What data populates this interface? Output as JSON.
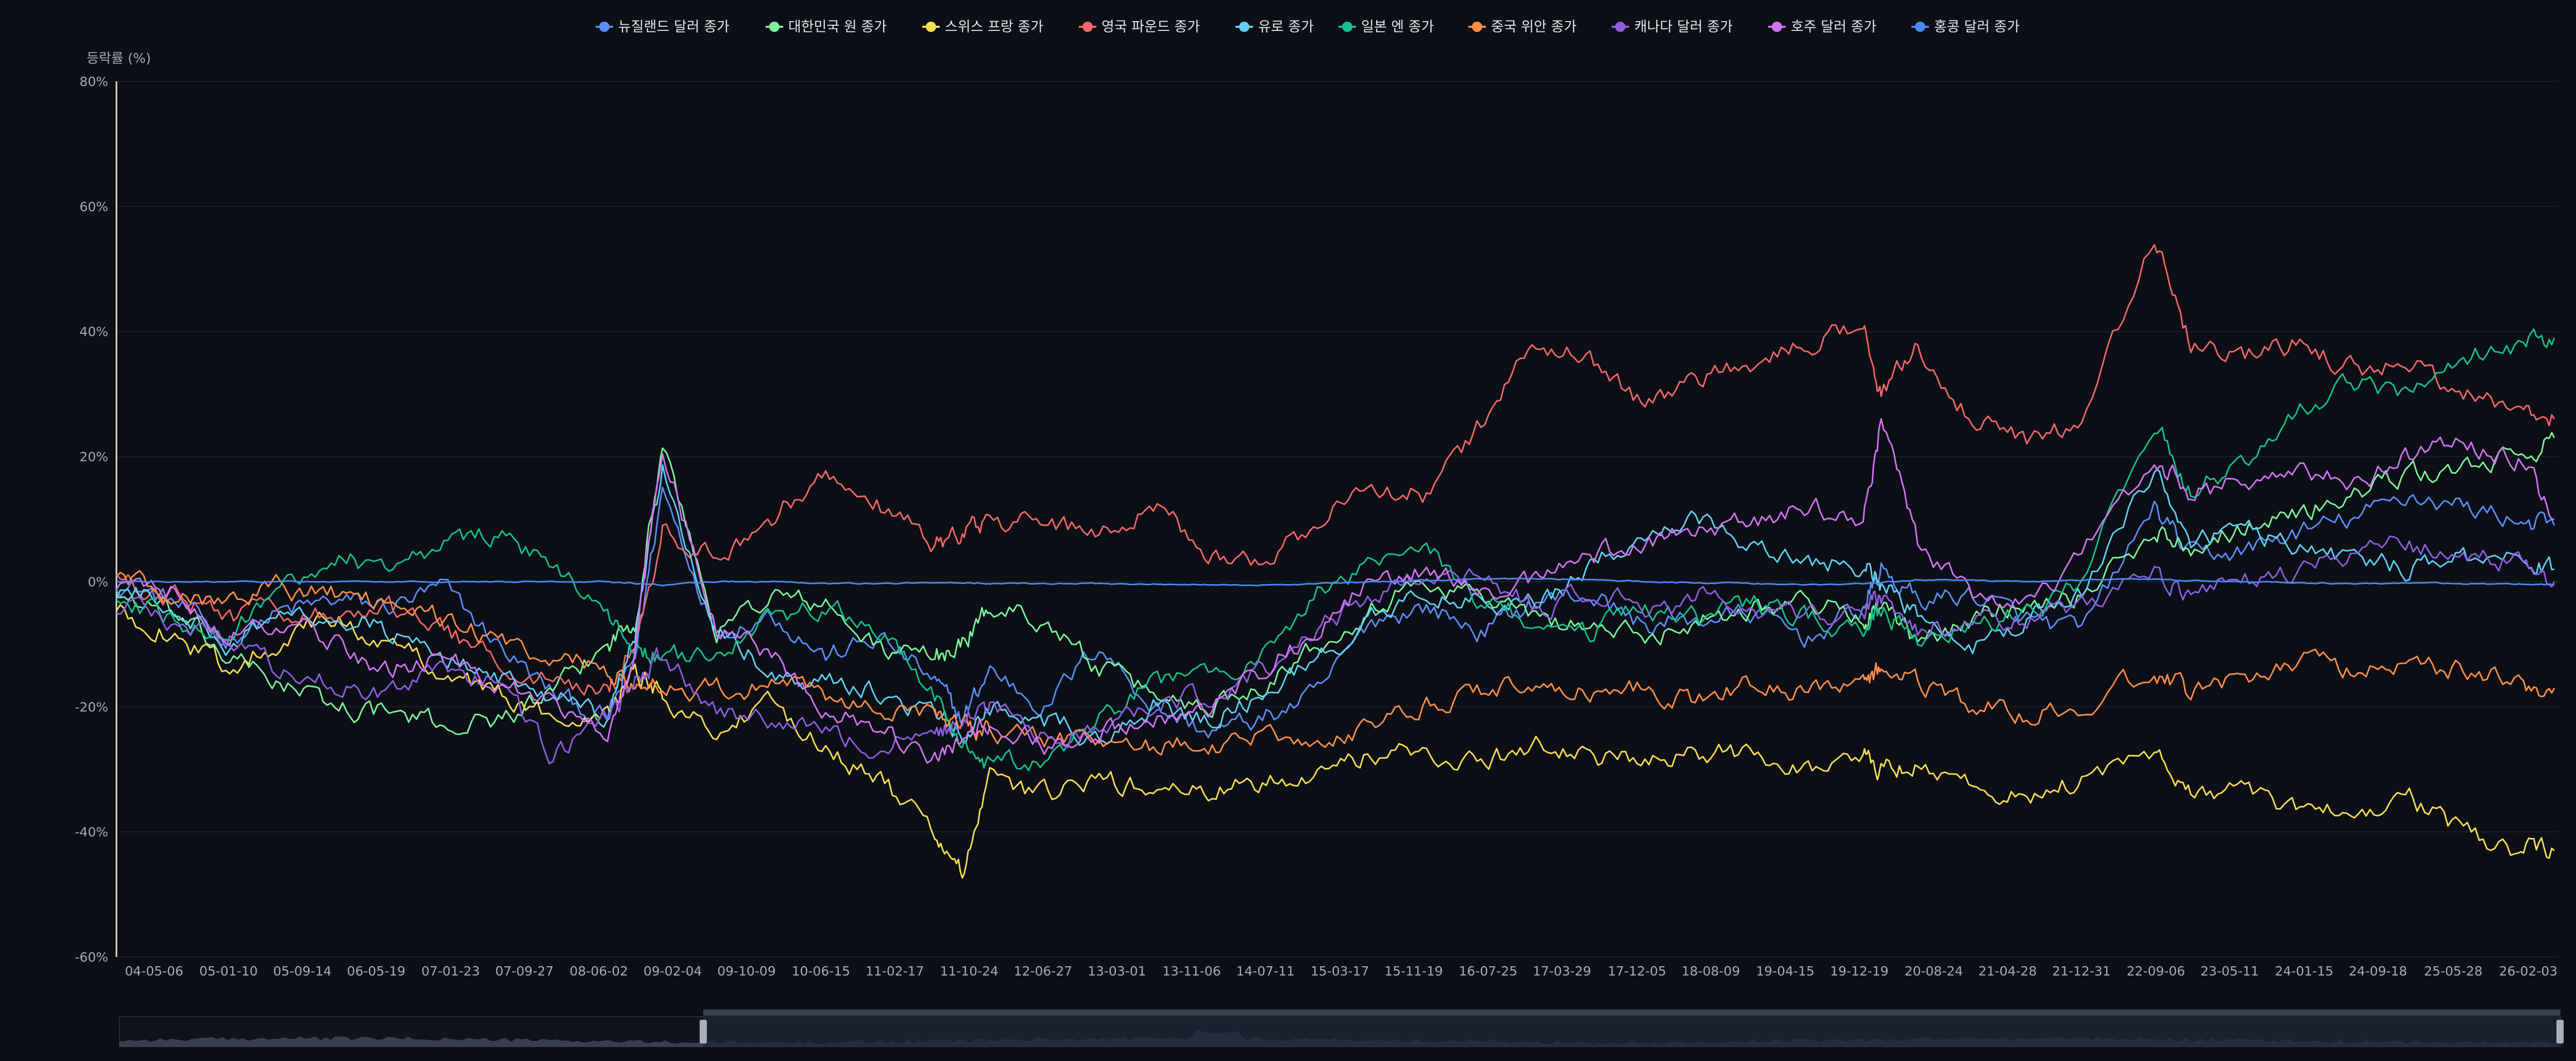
{
  "chart_data": {
    "type": "line",
    "ylabel": "등락률 (%)",
    "ylim": [
      -60,
      80
    ],
    "yticks": [
      "80%",
      "60%",
      "40%",
      "20%",
      "0%",
      "-20%",
      "-40%",
      "-60%"
    ],
    "ytick_values": [
      80,
      60,
      40,
      20,
      0,
      -20,
      -40,
      -60
    ],
    "grid": true,
    "legend_position": "top-center",
    "x_date_range": [
      "2004-01-01",
      "2026-05-15"
    ],
    "x_ticks": [
      "04-05-06",
      "05-01-10",
      "05-09-14",
      "06-05-19",
      "07-01-23",
      "07-09-27",
      "08-06-02",
      "09-02-04",
      "09-10-09",
      "10-06-15",
      "11-02-17",
      "11-10-24",
      "12-06-27",
      "13-03-01",
      "13-11-06",
      "14-07-11",
      "15-03-17",
      "15-11-19",
      "16-07-25",
      "17-03-29",
      "17-12-05",
      "18-08-09",
      "19-04-15",
      "19-12-19",
      "20-08-24",
      "21-04-28",
      "21-12-31",
      "22-09-06",
      "23-05-11",
      "24-01-15",
      "24-09-18",
      "25-05-28",
      "26-02-03"
    ],
    "series_x_dates": [
      "2004-01",
      "2004-07",
      "2005-01",
      "2005-07",
      "2006-01",
      "2006-07",
      "2007-01",
      "2007-07",
      "2008-01",
      "2008-07",
      "2008-10",
      "2009-01",
      "2009-07",
      "2010-01",
      "2010-07",
      "2011-01",
      "2011-07",
      "2011-10",
      "2012-01",
      "2012-07",
      "2013-01",
      "2013-07",
      "2014-01",
      "2014-07",
      "2015-01",
      "2015-07",
      "2016-01",
      "2016-07",
      "2017-01",
      "2017-07",
      "2018-01",
      "2018-07",
      "2019-01",
      "2019-07",
      "2020-01",
      "2020-03",
      "2020-07",
      "2021-01",
      "2021-07",
      "2022-01",
      "2022-09",
      "2023-01",
      "2023-07",
      "2024-01",
      "2024-07",
      "2025-01",
      "2025-07",
      "2026-01",
      "2026-05"
    ],
    "series": [
      {
        "name": "뉴질랜드 달러 종가",
        "color": "#5b8ef7",
        "values": [
          0,
          -3,
          -9,
          -5,
          -3,
          -4,
          -1,
          -10,
          -18,
          -22,
          -12,
          15,
          -8,
          -5,
          -12,
          -9,
          -16,
          -22,
          -14,
          -20,
          -10,
          -20,
          -24,
          -22,
          -18,
          -6,
          -4,
          -8,
          -3,
          -2,
          -7,
          -6,
          -5,
          -9,
          -4,
          2,
          -3,
          -2,
          -6,
          -8,
          12,
          4,
          5,
          8,
          10,
          14,
          12,
          10,
          9
        ]
      },
      {
        "name": "대한민국 원 종가",
        "color": "#7cf29a",
        "values": [
          -2,
          -5,
          -12,
          -16,
          -20,
          -21,
          -23,
          -22,
          -18,
          -10,
          -6,
          22,
          -8,
          -2,
          -4,
          -11,
          -12,
          -10,
          -4,
          -6,
          -14,
          -18,
          -20,
          -16,
          -10,
          -4,
          0,
          -2,
          -6,
          -7,
          -9,
          -6,
          -4,
          -3,
          -6,
          -4,
          -10,
          -6,
          -3,
          -2,
          8,
          6,
          9,
          11,
          14,
          17,
          18,
          20,
          23
        ]
      },
      {
        "name": "스위스 프랑 종가",
        "color": "#f7dc54",
        "values": [
          -5,
          -8,
          -14,
          -9,
          -6,
          -10,
          -14,
          -18,
          -22,
          -20,
          -14,
          -18,
          -24,
          -20,
          -26,
          -32,
          -40,
          -47,
          -32,
          -34,
          -32,
          -33,
          -34,
          -32,
          -30,
          -28,
          -27,
          -29,
          -26,
          -28,
          -29,
          -28,
          -27,
          -30,
          -28,
          -30,
          -29,
          -33,
          -34,
          -32,
          -28,
          -33,
          -34,
          -37,
          -36,
          -35,
          -40,
          -43,
          -43
        ]
      },
      {
        "name": "영국 파운드 종가",
        "color": "#f16868",
        "values": [
          0,
          -2,
          -6,
          -4,
          -6,
          -4,
          -8,
          -12,
          -16,
          -18,
          -10,
          8,
          4,
          10,
          18,
          12,
          6,
          8,
          10,
          9,
          8,
          12,
          5,
          3,
          10,
          15,
          14,
          25,
          38,
          36,
          28,
          32,
          35,
          38,
          42,
          30,
          38,
          26,
          22,
          26,
          55,
          38,
          36,
          38,
          34,
          35,
          30,
          28,
          26
        ]
      },
      {
        "name": "유로 종가",
        "color": "#5fd0f0",
        "values": [
          -2,
          -3,
          -10,
          -6,
          -4,
          -8,
          -12,
          -16,
          -18,
          -22,
          -8,
          18,
          -8,
          -14,
          -16,
          -18,
          -22,
          -24,
          -20,
          -22,
          -25,
          -20,
          -22,
          -18,
          -12,
          -6,
          -2,
          -3,
          -4,
          2,
          8,
          10,
          6,
          4,
          2,
          0,
          -6,
          -10,
          -6,
          -2,
          18,
          6,
          8,
          6,
          4,
          2,
          4,
          3,
          2
        ]
      },
      {
        "name": "일본 엔 종가",
        "color": "#17c08c",
        "values": [
          -3,
          -6,
          -8,
          -2,
          4,
          2,
          6,
          8,
          2,
          -6,
          -10,
          -12,
          -12,
          -6,
          -4,
          -8,
          -18,
          -26,
          -30,
          -28,
          -22,
          -16,
          -14,
          -12,
          -2,
          4,
          6,
          -4,
          -6,
          -8,
          -4,
          -6,
          -4,
          -6,
          -8,
          -4,
          -10,
          -8,
          -4,
          0,
          26,
          14,
          20,
          28,
          32,
          30,
          36,
          38,
          39
        ]
      },
      {
        "name": "중국 위안 종가",
        "color": "#ff8e47",
        "values": [
          0,
          -2,
          -3,
          -1,
          -2,
          -4,
          -6,
          -9,
          -12,
          -14,
          -16,
          -17,
          -17,
          -17,
          -18,
          -20,
          -22,
          -23,
          -24,
          -25,
          -25,
          -26,
          -26,
          -25,
          -24,
          -24,
          -20,
          -18,
          -16,
          -18,
          -17,
          -19,
          -16,
          -18,
          -15,
          -14,
          -16,
          -20,
          -21,
          -20,
          -14,
          -18,
          -15,
          -13,
          -14,
          -13,
          -14,
          -16,
          -17
        ]
      },
      {
        "name": "캐나다 달러 종가",
        "color": "#8e5ee0",
        "values": [
          -4,
          -6,
          -10,
          -14,
          -16,
          -18,
          -14,
          -16,
          -28,
          -22,
          -16,
          -12,
          -20,
          -22,
          -24,
          -26,
          -24,
          -22,
          -20,
          -24,
          -24,
          -20,
          -18,
          -14,
          -8,
          -2,
          2,
          0,
          -4,
          -2,
          -4,
          -2,
          -5,
          -6,
          -4,
          -2,
          -8,
          -6,
          -6,
          -4,
          2,
          -2,
          0,
          2,
          4,
          6,
          4,
          3,
          0
        ]
      },
      {
        "name": "호주 달러 종가",
        "color": "#d273f2",
        "values": [
          -1,
          -2,
          -8,
          -6,
          -10,
          -14,
          -12,
          -16,
          -20,
          -24,
          -10,
          22,
          -8,
          -12,
          -20,
          -24,
          -28,
          -26,
          -22,
          -26,
          -24,
          -22,
          -20,
          -14,
          -8,
          0,
          2,
          -2,
          0,
          4,
          6,
          8,
          10,
          12,
          10,
          26,
          6,
          -2,
          -4,
          4,
          20,
          14,
          16,
          18,
          16,
          20,
          22,
          20,
          10
        ]
      },
      {
        "name": "홍콩 달러 종가",
        "color": "#4a89f0",
        "values": [
          0,
          0,
          0,
          0,
          0,
          0,
          0,
          0,
          0,
          0,
          -0.3,
          -0.5,
          0,
          0,
          -0.3,
          -0.3,
          -0.2,
          -0.2,
          -0.3,
          -0.3,
          -0.3,
          -0.4,
          -0.5,
          -0.5,
          -0.3,
          0,
          0.2,
          0.4,
          0.5,
          0.3,
          0,
          -0.2,
          -0.3,
          -0.5,
          -0.3,
          -0.2,
          0.4,
          0.2,
          0,
          0.3,
          0.4,
          0.2,
          0,
          -0.2,
          -0.3,
          -0.2,
          -0.3,
          -0.4,
          -0.5
        ]
      }
    ]
  }
}
